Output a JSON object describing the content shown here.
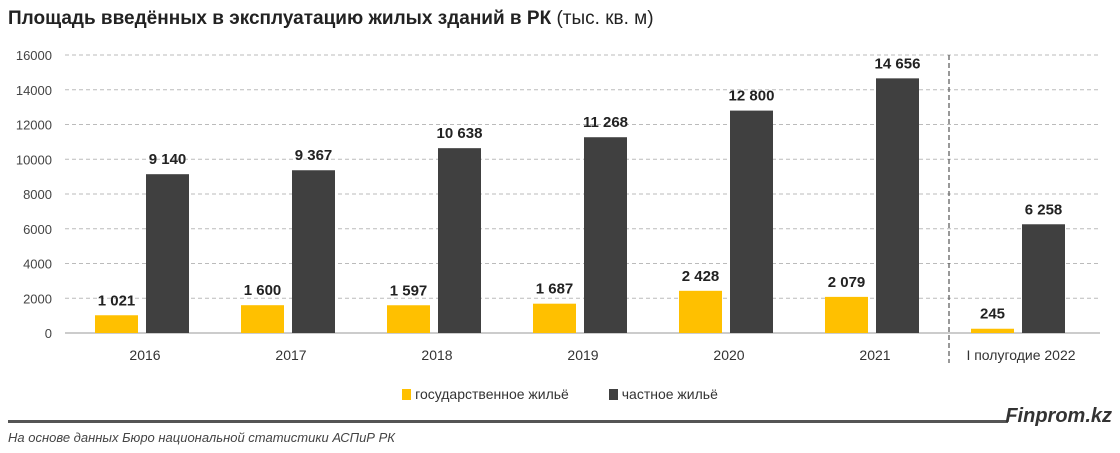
{
  "title": "Площадь введённых в эксплуатацию жилых зданий в РК",
  "title_unit": "(тыс. кв. м)",
  "brand": "Finprom.kz",
  "source": "На основе данных Бюро национальной статистики АСПиР РК",
  "chart_data": {
    "type": "bar",
    "categories": [
      "2016",
      "2017",
      "2018",
      "2019",
      "2020",
      "2021",
      "I полугодие 2022"
    ],
    "series": [
      {
        "name": "государственное жильё",
        "color": "#FFC000",
        "values": [
          1021,
          1600,
          1597,
          1687,
          2428,
          2079,
          245
        ],
        "labels": [
          "1 021",
          "1 600",
          "1 597",
          "1 687",
          "2 428",
          "2 079",
          "245"
        ]
      },
      {
        "name": "частное жильё",
        "color": "#404040",
        "values": [
          9140,
          9367,
          10638,
          11268,
          12800,
          14656,
          6258
        ],
        "labels": [
          "9 140",
          "9 367",
          "10 638",
          "11 268",
          "12 800",
          "14 656",
          "6 258"
        ]
      }
    ],
    "ylim": [
      0,
      16000
    ],
    "yticks": [
      "0",
      "2000",
      "4000",
      "6000",
      "8000",
      "10000",
      "12000",
      "14000",
      "16000"
    ],
    "grid": "dashed horizontal",
    "separator_before": "I полугодие 2022",
    "legend_position": "bottom"
  }
}
